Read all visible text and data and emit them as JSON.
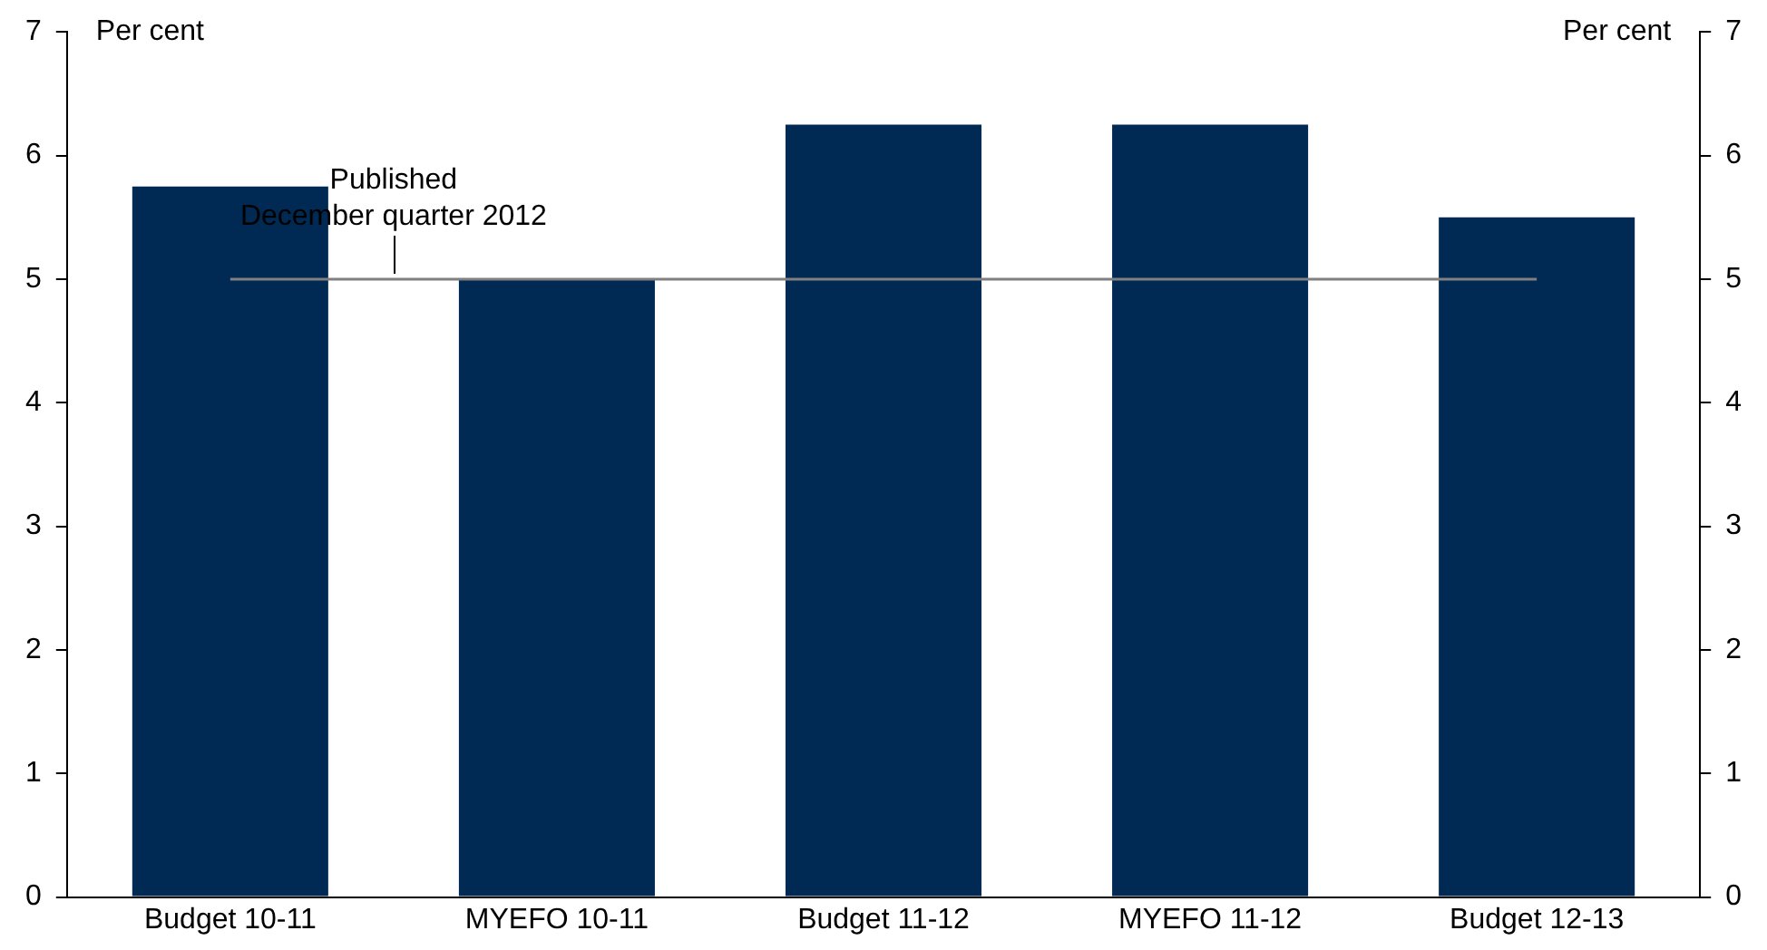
{
  "chart_data": {
    "type": "bar",
    "ylabel": "Per cent",
    "y2label": "Per cent",
    "categories": [
      "Budget 10-11",
      "MYEFO 10-11",
      "Budget 11-12",
      "MYEFO 11-12",
      "Budget 12-13"
    ],
    "values": [
      5.75,
      5.0,
      6.25,
      6.25,
      5.5
    ],
    "color": "#002a54",
    "ylim": [
      0,
      7
    ],
    "yticks": [
      0,
      1,
      2,
      3,
      4,
      5,
      6,
      7
    ],
    "y2lim": [
      0,
      7
    ],
    "y2ticks": [
      0,
      1,
      2,
      3,
      4,
      5,
      6,
      7
    ],
    "ref_lines": [
      {
        "axis": "y",
        "value": 5,
        "label": "Published\nDecember quarter 2012",
        "color": "#808080"
      }
    ],
    "grid": false,
    "legend": false
  }
}
